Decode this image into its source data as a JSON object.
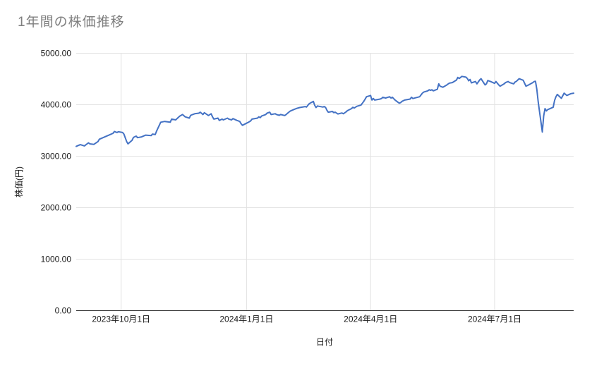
{
  "chart_data": {
    "type": "line",
    "title": "1年間の株価推移",
    "xlabel": "日付",
    "ylabel": "株価(円)",
    "ylim": [
      0,
      5000
    ],
    "x_domain": [
      "2023-08-29",
      "2024-08-28"
    ],
    "grid": true,
    "legend": "none",
    "colors": {
      "line": "#4472c4",
      "grid": "#e2e2e2",
      "axis_line": "#333333",
      "tick_text": "#1a1a1a",
      "title": "#7f7f7f"
    },
    "y_ticks": [
      {
        "value": 0,
        "label": "0.00"
      },
      {
        "value": 1000,
        "label": "1000.00"
      },
      {
        "value": 2000,
        "label": "2000.00"
      },
      {
        "value": 3000,
        "label": "3000.00"
      },
      {
        "value": 4000,
        "label": "4000.00"
      },
      {
        "value": 5000,
        "label": "5000.00"
      }
    ],
    "x_ticks": [
      {
        "date": "2023-10-01",
        "label": "2023年10月1日"
      },
      {
        "date": "2024-01-01",
        "label": "2024年1月1日"
      },
      {
        "date": "2024-04-01",
        "label": "2024年4月1日"
      },
      {
        "date": "2024-07-01",
        "label": "2024年7月1日"
      }
    ],
    "series": [
      {
        "name": "株価",
        "points": [
          [
            "2023-08-29",
            3190
          ],
          [
            "2023-09-01",
            3225
          ],
          [
            "2023-09-04",
            3200
          ],
          [
            "2023-09-07",
            3260
          ],
          [
            "2023-09-08",
            3240
          ],
          [
            "2023-09-11",
            3230
          ],
          [
            "2023-09-14",
            3285
          ],
          [
            "2023-09-15",
            3330
          ],
          [
            "2023-09-19",
            3375
          ],
          [
            "2023-09-22",
            3410
          ],
          [
            "2023-09-25",
            3445
          ],
          [
            "2023-09-26",
            3480
          ],
          [
            "2023-09-28",
            3460
          ],
          [
            "2023-09-29",
            3475
          ],
          [
            "2023-10-02",
            3460
          ],
          [
            "2023-10-03",
            3430
          ],
          [
            "2023-10-05",
            3285
          ],
          [
            "2023-10-06",
            3240
          ],
          [
            "2023-10-09",
            3310
          ],
          [
            "2023-10-10",
            3365
          ],
          [
            "2023-10-12",
            3390
          ],
          [
            "2023-10-13",
            3360
          ],
          [
            "2023-10-16",
            3375
          ],
          [
            "2023-10-19",
            3410
          ],
          [
            "2023-10-23",
            3400
          ],
          [
            "2023-10-24",
            3430
          ],
          [
            "2023-10-26",
            3420
          ],
          [
            "2023-10-27",
            3490
          ],
          [
            "2023-10-30",
            3660
          ],
          [
            "2023-11-02",
            3675
          ],
          [
            "2023-11-06",
            3660
          ],
          [
            "2023-11-07",
            3720
          ],
          [
            "2023-11-10",
            3705
          ],
          [
            "2023-11-13",
            3780
          ],
          [
            "2023-11-15",
            3810
          ],
          [
            "2023-11-17",
            3765
          ],
          [
            "2023-11-20",
            3740
          ],
          [
            "2023-11-21",
            3795
          ],
          [
            "2023-11-24",
            3825
          ],
          [
            "2023-11-27",
            3835
          ],
          [
            "2023-11-28",
            3855
          ],
          [
            "2023-11-30",
            3810
          ],
          [
            "2023-12-01",
            3845
          ],
          [
            "2023-12-04",
            3790
          ],
          [
            "2023-12-06",
            3825
          ],
          [
            "2023-12-07",
            3765
          ],
          [
            "2023-12-08",
            3720
          ],
          [
            "2023-12-11",
            3740
          ],
          [
            "2023-12-12",
            3695
          ],
          [
            "2023-12-14",
            3720
          ],
          [
            "2023-12-15",
            3705
          ],
          [
            "2023-12-18",
            3740
          ],
          [
            "2023-12-19",
            3720
          ],
          [
            "2023-12-21",
            3705
          ],
          [
            "2023-12-22",
            3730
          ],
          [
            "2023-12-25",
            3695
          ],
          [
            "2023-12-27",
            3675
          ],
          [
            "2023-12-28",
            3630
          ],
          [
            "2023-12-29",
            3600
          ],
          [
            "2024-01-02",
            3655
          ],
          [
            "2024-01-04",
            3685
          ],
          [
            "2024-01-05",
            3720
          ],
          [
            "2024-01-09",
            3740
          ],
          [
            "2024-01-10",
            3765
          ],
          [
            "2024-01-11",
            3750
          ],
          [
            "2024-01-12",
            3780
          ],
          [
            "2024-01-15",
            3810
          ],
          [
            "2024-01-16",
            3835
          ],
          [
            "2024-01-18",
            3855
          ],
          [
            "2024-01-19",
            3810
          ],
          [
            "2024-01-22",
            3825
          ],
          [
            "2024-01-23",
            3810
          ],
          [
            "2024-01-25",
            3795
          ],
          [
            "2024-01-26",
            3810
          ],
          [
            "2024-01-29",
            3790
          ],
          [
            "2024-01-30",
            3810
          ],
          [
            "2024-02-01",
            3855
          ],
          [
            "2024-02-02",
            3875
          ],
          [
            "2024-02-05",
            3910
          ],
          [
            "2024-02-06",
            3920
          ],
          [
            "2024-02-07",
            3930
          ],
          [
            "2024-02-09",
            3945
          ],
          [
            "2024-02-13",
            3965
          ],
          [
            "2024-02-14",
            3955
          ],
          [
            "2024-02-15",
            3990
          ],
          [
            "2024-02-16",
            4020
          ],
          [
            "2024-02-19",
            4065
          ],
          [
            "2024-02-20",
            3990
          ],
          [
            "2024-02-21",
            3945
          ],
          [
            "2024-02-22",
            3975
          ],
          [
            "2024-02-26",
            3955
          ],
          [
            "2024-02-27",
            3965
          ],
          [
            "2024-02-28",
            3945
          ],
          [
            "2024-02-29",
            3890
          ],
          [
            "2024-03-01",
            3855
          ],
          [
            "2024-03-04",
            3870
          ],
          [
            "2024-03-05",
            3845
          ],
          [
            "2024-03-06",
            3855
          ],
          [
            "2024-03-08",
            3820
          ],
          [
            "2024-03-11",
            3840
          ],
          [
            "2024-03-12",
            3825
          ],
          [
            "2024-03-14",
            3860
          ],
          [
            "2024-03-15",
            3885
          ],
          [
            "2024-03-18",
            3925
          ],
          [
            "2024-03-19",
            3950
          ],
          [
            "2024-03-20",
            3935
          ],
          [
            "2024-03-22",
            3970
          ],
          [
            "2024-03-25",
            3995
          ],
          [
            "2024-03-26",
            4030
          ],
          [
            "2024-03-27",
            4065
          ],
          [
            "2024-03-28",
            4110
          ],
          [
            "2024-03-29",
            4155
          ],
          [
            "2024-04-01",
            4180
          ],
          [
            "2024-04-02",
            4090
          ],
          [
            "2024-04-03",
            4120
          ],
          [
            "2024-04-04",
            4090
          ],
          [
            "2024-04-08",
            4110
          ],
          [
            "2024-04-09",
            4120
          ],
          [
            "2024-04-10",
            4145
          ],
          [
            "2024-04-12",
            4130
          ],
          [
            "2024-04-15",
            4155
          ],
          [
            "2024-04-16",
            4130
          ],
          [
            "2024-04-17",
            4145
          ],
          [
            "2024-04-19",
            4090
          ],
          [
            "2024-04-22",
            4030
          ],
          [
            "2024-04-23",
            4040
          ],
          [
            "2024-04-24",
            4065
          ],
          [
            "2024-04-26",
            4090
          ],
          [
            "2024-04-30",
            4110
          ],
          [
            "2024-05-01",
            4145
          ],
          [
            "2024-05-02",
            4120
          ],
          [
            "2024-05-07",
            4155
          ],
          [
            "2024-05-08",
            4190
          ],
          [
            "2024-05-09",
            4225
          ],
          [
            "2024-05-10",
            4245
          ],
          [
            "2024-05-13",
            4270
          ],
          [
            "2024-05-14",
            4290
          ],
          [
            "2024-05-15",
            4280
          ],
          [
            "2024-05-16",
            4290
          ],
          [
            "2024-05-17",
            4270
          ],
          [
            "2024-05-20",
            4300
          ],
          [
            "2024-05-21",
            4405
          ],
          [
            "2024-05-22",
            4360
          ],
          [
            "2024-05-24",
            4340
          ],
          [
            "2024-05-27",
            4385
          ],
          [
            "2024-05-28",
            4405
          ],
          [
            "2024-05-29",
            4420
          ],
          [
            "2024-05-31",
            4430
          ],
          [
            "2024-06-03",
            4480
          ],
          [
            "2024-06-04",
            4530
          ],
          [
            "2024-06-05",
            4510
          ],
          [
            "2024-06-07",
            4550
          ],
          [
            "2024-06-10",
            4535
          ],
          [
            "2024-06-11",
            4510
          ],
          [
            "2024-06-12",
            4465
          ],
          [
            "2024-06-13",
            4490
          ],
          [
            "2024-06-14",
            4425
          ],
          [
            "2024-06-17",
            4450
          ],
          [
            "2024-06-18",
            4405
          ],
          [
            "2024-06-20",
            4480
          ],
          [
            "2024-06-21",
            4505
          ],
          [
            "2024-06-24",
            4385
          ],
          [
            "2024-06-25",
            4405
          ],
          [
            "2024-06-26",
            4470
          ],
          [
            "2024-06-28",
            4450
          ],
          [
            "2024-07-01",
            4415
          ],
          [
            "2024-07-02",
            4450
          ],
          [
            "2024-07-04",
            4385
          ],
          [
            "2024-07-05",
            4360
          ],
          [
            "2024-07-08",
            4405
          ],
          [
            "2024-07-09",
            4430
          ],
          [
            "2024-07-11",
            4450
          ],
          [
            "2024-07-12",
            4430
          ],
          [
            "2024-07-15",
            4405
          ],
          [
            "2024-07-16",
            4440
          ],
          [
            "2024-07-17",
            4455
          ],
          [
            "2024-07-19",
            4505
          ],
          [
            "2024-07-22",
            4475
          ],
          [
            "2024-07-24",
            4360
          ],
          [
            "2024-07-26",
            4385
          ],
          [
            "2024-07-29",
            4430
          ],
          [
            "2024-07-30",
            4450
          ],
          [
            "2024-07-31",
            4455
          ],
          [
            "2024-08-01",
            4300
          ],
          [
            "2024-08-02",
            4050
          ],
          [
            "2024-08-05",
            3470
          ],
          [
            "2024-08-06",
            3780
          ],
          [
            "2024-08-07",
            3925
          ],
          [
            "2024-08-08",
            3880
          ],
          [
            "2024-08-09",
            3905
          ],
          [
            "2024-08-13",
            3950
          ],
          [
            "2024-08-14",
            4085
          ],
          [
            "2024-08-15",
            4155
          ],
          [
            "2024-08-16",
            4200
          ],
          [
            "2024-08-19",
            4125
          ],
          [
            "2024-08-21",
            4225
          ],
          [
            "2024-08-23",
            4180
          ],
          [
            "2024-08-26",
            4215
          ],
          [
            "2024-08-28",
            4225
          ]
        ]
      }
    ]
  }
}
